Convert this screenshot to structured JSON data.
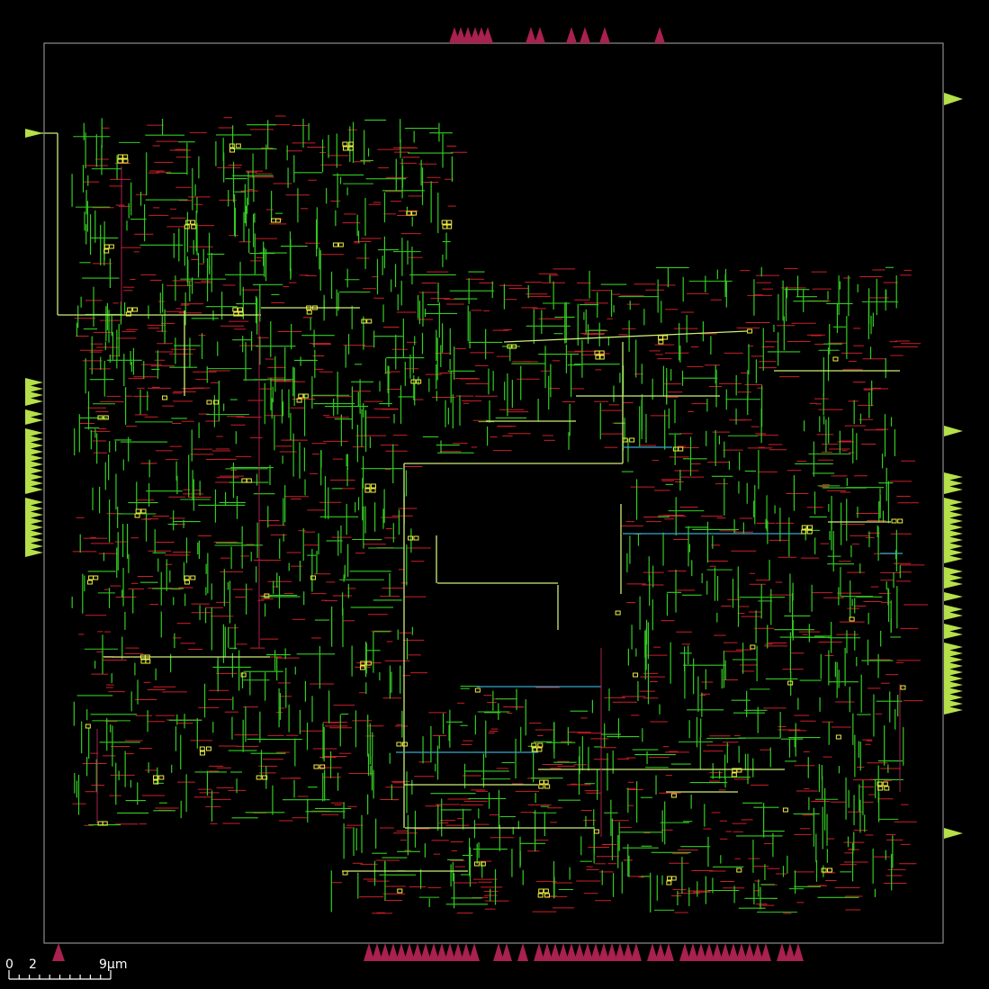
{
  "view": {
    "background": "#000000",
    "die_outline_color": "#8c8c8c",
    "units": "µm"
  },
  "layers": [
    {
      "name": "vertical-metal",
      "icon": "green-wire-icon",
      "color": "#33cc22"
    },
    {
      "name": "horizontal-metal",
      "icon": "red-wire-icon",
      "color": "#cc1f2a"
    },
    {
      "name": "upper-metal",
      "icon": "lime-wire-icon",
      "color": "#ccee77"
    },
    {
      "name": "long-route",
      "icon": "cyan-wire-icon",
      "color": "#3aa6cc"
    },
    {
      "name": "vias",
      "icon": "via-square-icon",
      "color": "#eeee44"
    }
  ],
  "pins": {
    "magenta_color": "#a8214f",
    "lime_color": "#b5e04a"
  },
  "scale_bar": {
    "labels": [
      "0",
      "2",
      "9μm"
    ],
    "color": "#ffffff"
  }
}
